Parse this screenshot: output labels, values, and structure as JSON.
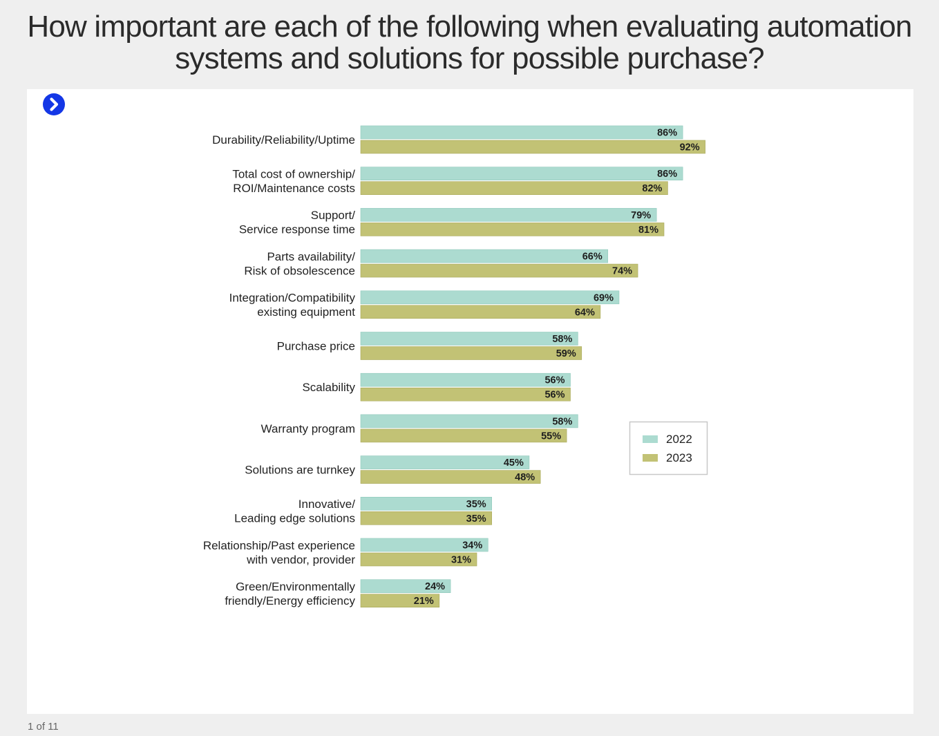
{
  "title_lines": [
    "How important are each of the following when evaluating automation",
    "systems and solutions for possible purchase?"
  ],
  "navigation": {
    "next_icon": "chevron-right-icon",
    "slide_counter": "1 of 11"
  },
  "colors": {
    "series_2022": "#acdbd0",
    "series_2023": "#c2c275",
    "accent": "#1437e6"
  },
  "chart_data": {
    "type": "bar",
    "orientation": "horizontal",
    "categories": [
      [
        "Durability/Reliability/Uptime"
      ],
      [
        "Total cost of ownership/",
        "ROI/Maintenance costs"
      ],
      [
        "Support/",
        "Service response time"
      ],
      [
        "Parts availability/",
        "Risk of obsolescence"
      ],
      [
        "Integration/Compatibility",
        "existing equipment"
      ],
      [
        "Purchase price"
      ],
      [
        "Scalability"
      ],
      [
        "Warranty program"
      ],
      [
        "Solutions are turnkey"
      ],
      [
        "Innovative/",
        "Leading edge solutions"
      ],
      [
        "Relationship/Past experience",
        "with vendor, provider"
      ],
      [
        "Green/Environmentally",
        "friendly/Energy efficiency"
      ]
    ],
    "series": [
      {
        "name": "2022",
        "values": [
          86,
          86,
          79,
          66,
          69,
          58,
          56,
          58,
          45,
          35,
          34,
          24
        ]
      },
      {
        "name": "2023",
        "values": [
          92,
          82,
          81,
          74,
          64,
          59,
          56,
          55,
          48,
          35,
          31,
          21
        ]
      }
    ],
    "value_suffix": "%",
    "xlim": [
      0,
      100
    ],
    "grid": false,
    "legend_position": "right-middle"
  }
}
